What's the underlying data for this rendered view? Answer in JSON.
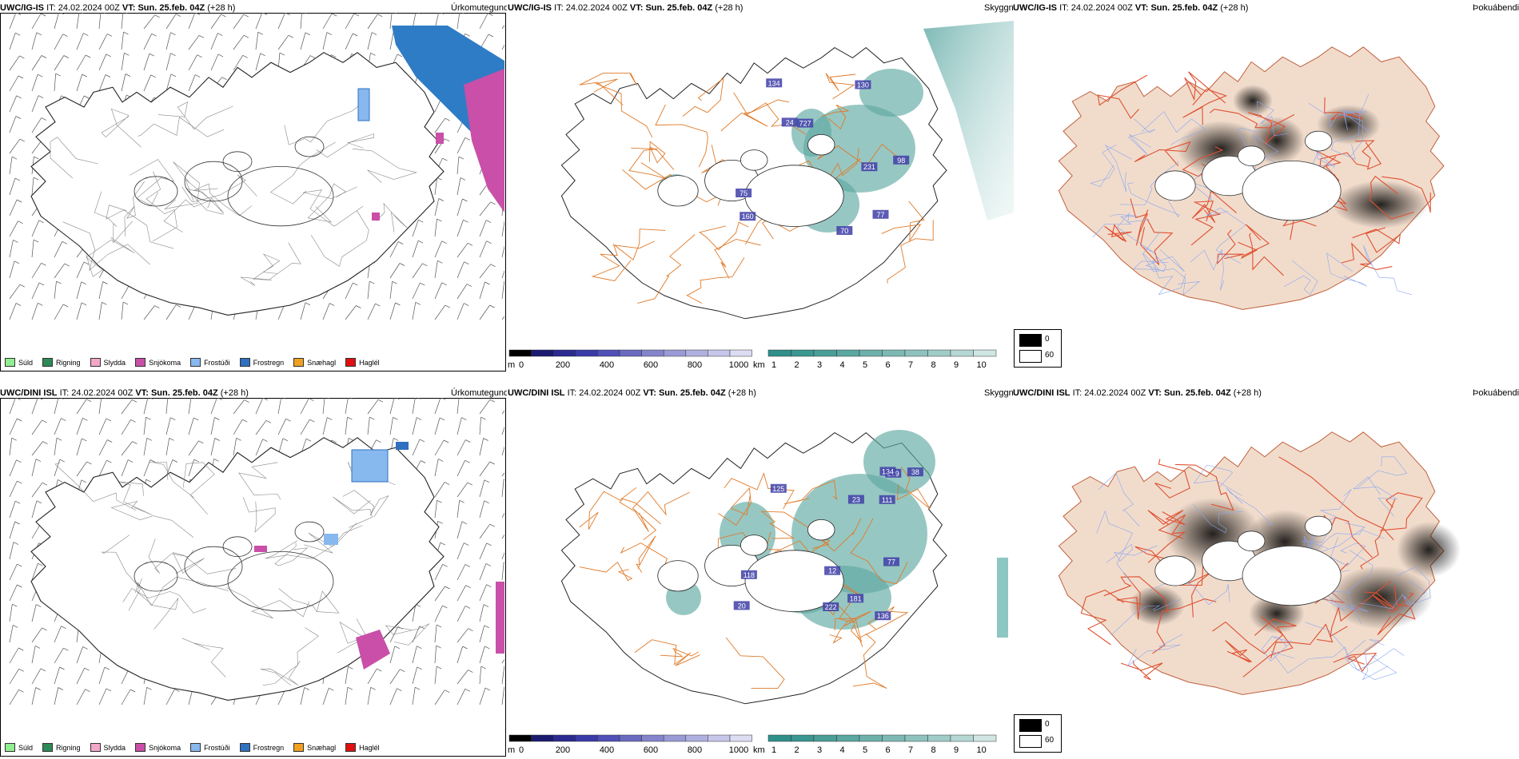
{
  "rows": [
    {
      "model": "UWC/IG-IS",
      "it_label": "IT:",
      "it": "24.02.2024 00Z",
      "vt_label": "VT:",
      "vt": "Sun. 25.feb. 04Z",
      "lead": "(+28 h)",
      "snow_labels": [
        "231",
        "98",
        "160",
        "134",
        "727",
        "77",
        "75",
        "130",
        "24",
        "70"
      ]
    },
    {
      "model": "UWC/DINI ISL",
      "it_label": "IT:",
      "it": "24.02.2024 00Z",
      "vt_label": "VT:",
      "vt": "Sun. 25.feb. 04Z",
      "lead": "(+28 h)",
      "snow_labels": [
        "209",
        "125",
        "38",
        "77",
        "111",
        "222",
        "134",
        "136",
        "181",
        "118",
        "12",
        "23",
        "20"
      ]
    }
  ],
  "panel_titles": {
    "precip": "Úrkomutegund",
    "snow": "Skyggni",
    "fog": "Þokuábendi"
  },
  "precip_legend": [
    {
      "label": "Súld",
      "color": "#90ee90"
    },
    {
      "label": "Rigning",
      "color": "#2e8b57"
    },
    {
      "label": "Slydda",
      "color": "#f4a7c8"
    },
    {
      "label": "Snjókoma",
      "color": "#c94fa8"
    },
    {
      "label": "Frostúði",
      "color": "#87b8ee"
    },
    {
      "label": "Frostregn",
      "color": "#2f70c0"
    },
    {
      "label": "Snæhagl",
      "color": "#f0a020"
    },
    {
      "label": "Haglél",
      "color": "#e01010"
    }
  ],
  "snow_bar": {
    "unit": "m",
    "ticks": [
      "0",
      "200",
      "400",
      "600",
      "800",
      "1000"
    ]
  },
  "vis_bar": {
    "unit": "km",
    "ticks": [
      "1",
      "2",
      "3",
      "4",
      "5",
      "6",
      "7",
      "8",
      "9",
      "10"
    ]
  },
  "fog_legend": {
    "items": [
      "0",
      "60"
    ]
  },
  "colors": {
    "coast": "#333333",
    "roads": "#e07a28",
    "land_fog": "#f1dccc",
    "rivers_fog": "#8aa6f0",
    "vis_teal": "#2f8f8a",
    "snow_blue": "#4040a8"
  }
}
